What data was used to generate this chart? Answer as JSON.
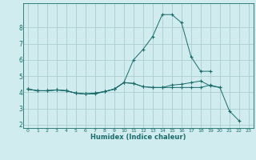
{
  "xlabel": "Humidex (Indice chaleur)",
  "x_values": [
    0,
    1,
    2,
    3,
    4,
    5,
    6,
    7,
    8,
    9,
    10,
    11,
    12,
    13,
    14,
    15,
    16,
    17,
    18,
    19,
    20,
    21,
    22,
    23
  ],
  "line1_y": [
    4.2,
    4.1,
    4.1,
    4.15,
    4.1,
    3.95,
    3.9,
    3.9,
    4.05,
    4.2,
    4.6,
    4.55,
    4.35,
    4.3,
    4.3,
    4.3,
    4.3,
    4.3,
    4.3,
    4.45,
    4.3,
    null,
    null,
    null
  ],
  "line2_y": [
    4.2,
    4.1,
    4.1,
    4.15,
    4.1,
    3.95,
    3.9,
    3.95,
    4.05,
    4.2,
    4.6,
    6.0,
    6.65,
    7.45,
    8.8,
    8.8,
    8.3,
    6.2,
    5.3,
    5.3,
    null,
    null,
    null,
    null
  ],
  "line3_y": [
    4.2,
    4.1,
    4.1,
    4.15,
    4.1,
    3.95,
    3.9,
    3.95,
    4.05,
    4.2,
    4.6,
    4.55,
    4.35,
    4.3,
    4.3,
    4.45,
    4.5,
    4.6,
    4.7,
    4.4,
    4.3,
    2.85,
    2.25,
    null
  ],
  "line_color": "#1a6b6b",
  "bg_color": "#d0ecee",
  "grid_color": "#aacdd0",
  "ylim": [
    1.8,
    9.5
  ],
  "xlim": [
    -0.5,
    23.5
  ],
  "yticks": [
    2,
    3,
    4,
    5,
    6,
    7,
    8
  ],
  "xticks": [
    0,
    1,
    2,
    3,
    4,
    5,
    6,
    7,
    8,
    9,
    10,
    11,
    12,
    13,
    14,
    15,
    16,
    17,
    18,
    19,
    20,
    21,
    22,
    23
  ]
}
